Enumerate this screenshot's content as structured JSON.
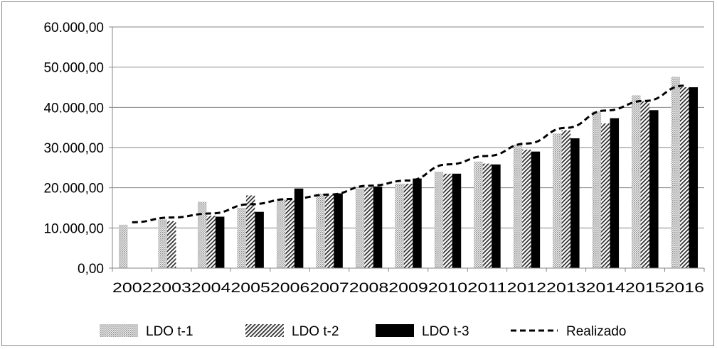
{
  "chart_data": {
    "type": "bar",
    "title": "",
    "xlabel": "",
    "ylabel": "",
    "categories": [
      "2002",
      "2003",
      "2004",
      "2005",
      "2006",
      "2007",
      "2008",
      "2009",
      "2010",
      "2011",
      "2012",
      "2013",
      "2014",
      "2015",
      "2016"
    ],
    "ylim": [
      0,
      60000
    ],
    "y_ticks": [
      "0,00",
      "10.000,00",
      "20.000,00",
      "30.000,00",
      "40.000,00",
      "50.000,00",
      "60.000,00"
    ],
    "y_tick_values": [
      0,
      10000,
      20000,
      30000,
      40000,
      50000,
      60000
    ],
    "grid": true,
    "legend_position": "bottom",
    "series": [
      {
        "name": "LDO t-1",
        "kind": "bar",
        "pattern": "dotted-gray",
        "values": [
          10800,
          12100,
          16500,
          15000,
          17200,
          18500,
          19800,
          21000,
          24000,
          26500,
          30700,
          33500,
          39000,
          43000,
          47600
        ]
      },
      {
        "name": "LDO t-2",
        "kind": "bar",
        "pattern": "diagonal-hatch",
        "values": [
          null,
          11700,
          13000,
          18100,
          17000,
          18200,
          20000,
          21000,
          23500,
          26000,
          29500,
          34300,
          36000,
          41500,
          45000
        ]
      },
      {
        "name": "LDO t-3",
        "kind": "bar",
        "pattern": "solid-black",
        "values": [
          null,
          null,
          12800,
          14000,
          19800,
          18600,
          20300,
          22300,
          23500,
          25800,
          29000,
          32300,
          37300,
          39300,
          45000
        ]
      },
      {
        "name": "Realizado",
        "kind": "line",
        "style": "dashed-black",
        "values": [
          11400,
          12600,
          13600,
          15900,
          17200,
          18300,
          20500,
          21800,
          25800,
          27900,
          31000,
          34900,
          39200,
          41600,
          45400
        ]
      }
    ]
  }
}
